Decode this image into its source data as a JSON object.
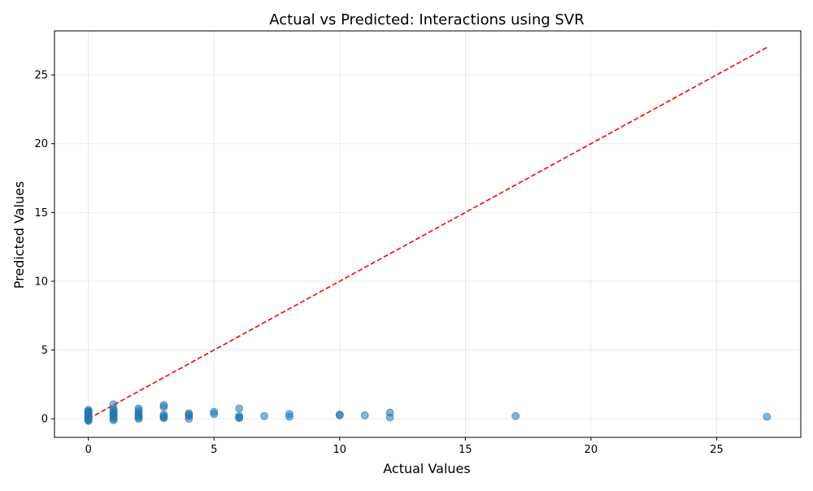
{
  "chart_data": {
    "type": "scatter",
    "title": "Actual vs Predicted: Interactions using SVR",
    "xlabel": "Actual Values",
    "ylabel": "Predicted Values",
    "xlim": [
      -1.35,
      28.35
    ],
    "ylim": [
      -1.35,
      28.2
    ],
    "xticks": [
      0,
      5,
      10,
      15,
      20,
      25
    ],
    "yticks": [
      0,
      5,
      10,
      15,
      20,
      25
    ],
    "grid": true,
    "point_color": "#1f77b4",
    "point_alpha": 0.55,
    "reference_line": {
      "label": "",
      "color": "#ff0000",
      "style": "dashed",
      "x": [
        0,
        27
      ],
      "y": [
        0,
        27
      ]
    },
    "points": [
      {
        "x": 0,
        "y": 0.65
      },
      {
        "x": 0,
        "y": 0.55
      },
      {
        "x": 0,
        "y": 0.5
      },
      {
        "x": 0,
        "y": 0.45
      },
      {
        "x": 0,
        "y": 0.4
      },
      {
        "x": 0,
        "y": 0.35
      },
      {
        "x": 0,
        "y": 0.3
      },
      {
        "x": 0,
        "y": 0.25
      },
      {
        "x": 0,
        "y": 0.2
      },
      {
        "x": 0,
        "y": 0.15
      },
      {
        "x": 0,
        "y": 0.1
      },
      {
        "x": 0,
        "y": 0.05
      },
      {
        "x": 0,
        "y": 0.0
      },
      {
        "x": 0,
        "y": -0.05
      },
      {
        "x": 0,
        "y": -0.1
      },
      {
        "x": 0,
        "y": -0.15
      },
      {
        "x": 1,
        "y": 1.05
      },
      {
        "x": 1,
        "y": 0.7
      },
      {
        "x": 1,
        "y": 0.6
      },
      {
        "x": 1,
        "y": 0.5
      },
      {
        "x": 1,
        "y": 0.4
      },
      {
        "x": 1,
        "y": 0.3
      },
      {
        "x": 1,
        "y": 0.2
      },
      {
        "x": 1,
        "y": 0.1
      },
      {
        "x": 1,
        "y": 0.0
      },
      {
        "x": 1,
        "y": -0.1
      },
      {
        "x": 2,
        "y": 0.75
      },
      {
        "x": 2,
        "y": 0.6
      },
      {
        "x": 2,
        "y": 0.45
      },
      {
        "x": 2,
        "y": 0.3
      },
      {
        "x": 2,
        "y": 0.2
      },
      {
        "x": 2,
        "y": 0.1
      },
      {
        "x": 2,
        "y": 0.0
      },
      {
        "x": 3,
        "y": 1.0
      },
      {
        "x": 3,
        "y": 0.85
      },
      {
        "x": 3,
        "y": 0.3
      },
      {
        "x": 3,
        "y": 0.2
      },
      {
        "x": 3,
        "y": 0.1
      },
      {
        "x": 3,
        "y": 0.05
      },
      {
        "x": 4,
        "y": 0.4
      },
      {
        "x": 4,
        "y": 0.3
      },
      {
        "x": 4,
        "y": 0.2
      },
      {
        "x": 4,
        "y": 0.0
      },
      {
        "x": 5,
        "y": 0.5
      },
      {
        "x": 5,
        "y": 0.35
      },
      {
        "x": 6,
        "y": 0.75
      },
      {
        "x": 6,
        "y": 0.2
      },
      {
        "x": 6,
        "y": 0.1
      },
      {
        "x": 6,
        "y": 0.05
      },
      {
        "x": 7,
        "y": 0.2
      },
      {
        "x": 8,
        "y": 0.35
      },
      {
        "x": 8,
        "y": 0.15
      },
      {
        "x": 10,
        "y": 0.3
      },
      {
        "x": 10,
        "y": 0.25
      },
      {
        "x": 11,
        "y": 0.25
      },
      {
        "x": 12,
        "y": 0.45
      },
      {
        "x": 12,
        "y": 0.1
      },
      {
        "x": 17,
        "y": 0.2
      },
      {
        "x": 27,
        "y": 0.15
      }
    ]
  }
}
